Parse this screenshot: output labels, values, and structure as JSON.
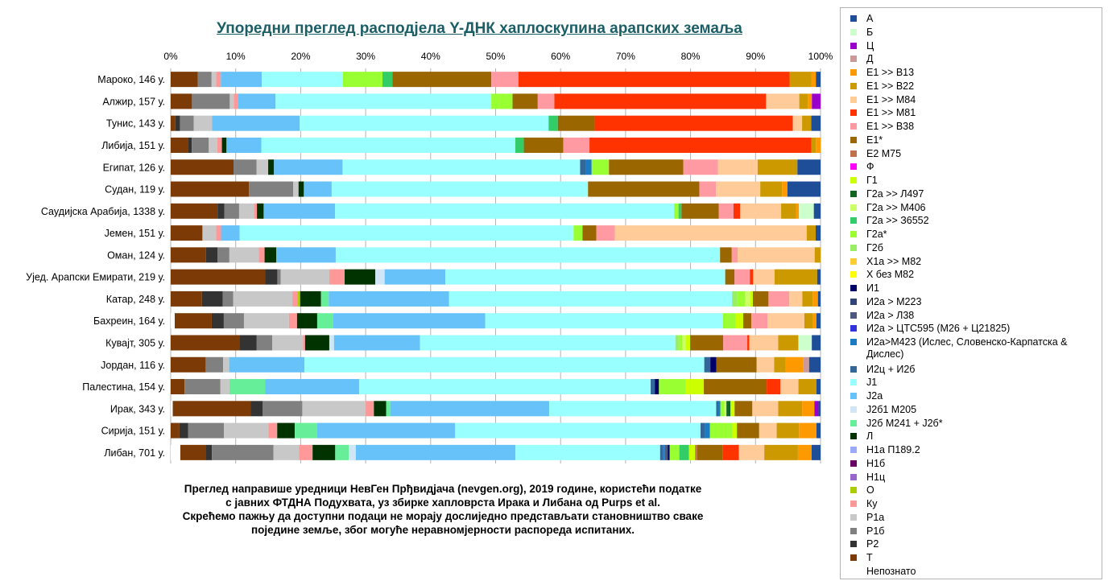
{
  "chart_data": {
    "type": "bar",
    "orientation": "horizontal",
    "stacked": "percent",
    "title": "Упоредни преглед расподјела Y-ДНК хаплоскупина арапских земаља",
    "xlim": [
      0,
      100
    ],
    "x_ticks": [
      "0%",
      "10%",
      "20%",
      "30%",
      "40%",
      "50%",
      "60%",
      "70%",
      "80%",
      "90%",
      "100%"
    ],
    "grid": true,
    "legend_position": "right",
    "categories": [
      "Мароко, 146 у.",
      "Алжир, 157 у.",
      "Тунис, 143 у.",
      "Либија, 151 у.",
      "Египат, 126 у.",
      "Судан, 119 у.",
      "Саудијска Арабија, 1338 у.",
      "Јемен, 151 у.",
      "Оман, 124 у.",
      "Уједињени Арапски Емирати, 219 у.",
      "Катар, 248 у.",
      "Бахреин, 164 у.",
      "Кувајт, 305 у.",
      "Јордан, 116 у.",
      "Палестина, 154 у.",
      "Ирак, 343 у.",
      "Сирија, 151 у.",
      "Либан, 701 у."
    ],
    "series": [
      {
        "name": "Непознато",
        "color": "#ffffff",
        "values": [
          0,
          0,
          0,
          0,
          0,
          0,
          0,
          0,
          0,
          0,
          0,
          0.6,
          0,
          0,
          0,
          0.3,
          0,
          1.4
        ]
      },
      {
        "name": "Т",
        "color": "#7b3a06",
        "values": [
          4.1,
          3.2,
          0.7,
          2.6,
          8.7,
          11.8,
          6.3,
          4.6,
          4.8,
          14.2,
          4.8,
          5.5,
          10.2,
          5.2,
          2.0,
          11.4,
          1.3,
          3.7
        ]
      },
      {
        "name": "Р2",
        "color": "#333333",
        "values": [
          0,
          0,
          0.7,
          0.6,
          0,
          0,
          0.9,
          0,
          1.6,
          1.8,
          3.2,
          1.8,
          2.6,
          0,
          0,
          1.8,
          1.3,
          0.9
        ]
      },
      {
        "name": "Р1б",
        "color": "#808080",
        "values": [
          2.1,
          5.7,
          2.1,
          2.6,
          3.2,
          6.7,
          2.0,
          0,
          1.6,
          0.5,
          1.6,
          3.0,
          2.3,
          2.6,
          5.2,
          5.8,
          5.3,
          9.0
        ]
      },
      {
        "name": "Р1а",
        "color": "#c8c8c8",
        "values": [
          0.7,
          0.6,
          2.8,
          1.3,
          1.6,
          0.8,
          2.0,
          2.0,
          4.0,
          7.3,
          9.1,
          6.7,
          4.6,
          0.9,
          1.3,
          9.3,
          6.6,
          3.7
        ]
      },
      {
        "name": "Ку",
        "color": "#ff9999",
        "values": [
          0.7,
          0.6,
          0,
          0.7,
          0,
          0,
          0.4,
          0.7,
          0.8,
          2.3,
          0.8,
          1.2,
          0.3,
          0,
          0,
          1.2,
          1.3,
          2.0
        ]
      },
      {
        "name": "О",
        "color": "#aacc00",
        "values": [
          0,
          0,
          0,
          0,
          0,
          0,
          0,
          0,
          0,
          0,
          0.4,
          0,
          0,
          0,
          0,
          0,
          0,
          0
        ]
      },
      {
        "name": "Н1ц",
        "color": "#9966cc",
        "values": [
          0,
          0,
          0,
          0,
          0,
          0,
          0,
          0,
          0,
          0,
          0,
          0,
          0,
          0,
          0,
          0,
          0,
          0
        ]
      },
      {
        "name": "Н1б",
        "color": "#660066",
        "values": [
          0,
          0,
          0,
          0,
          0,
          0,
          0,
          0,
          0,
          0,
          0,
          0,
          0,
          0,
          0,
          0,
          0,
          0
        ]
      },
      {
        "name": "Н1а П189.2",
        "color": "#99aaff",
        "values": [
          0,
          0,
          0,
          0,
          0,
          0,
          0,
          0,
          0,
          0,
          0,
          0,
          0,
          0,
          0,
          0,
          0,
          0
        ]
      },
      {
        "name": "Л",
        "color": "#003300",
        "values": [
          0,
          0,
          0,
          0.7,
          0.8,
          0.8,
          0.9,
          0,
          1.6,
          4.6,
          3.2,
          3.0,
          3.6,
          0,
          0,
          1.8,
          2.6,
          3.3
        ]
      },
      {
        "name": "Ј2б М241 + Ј2б*",
        "color": "#66ee99",
        "values": [
          0,
          0,
          0,
          0,
          0,
          0,
          0,
          0,
          0,
          0,
          1.2,
          2.4,
          0,
          0,
          5.2,
          0.6,
          3.3,
          2.0
        ]
      },
      {
        "name": "Ј2б1 М205",
        "color": "#d0e6f6",
        "values": [
          0,
          0,
          0,
          0,
          0,
          0,
          0,
          0,
          0,
          1.4,
          0,
          0,
          0.7,
          0,
          0,
          0,
          0,
          1.0
        ]
      },
      {
        "name": "Ј2а",
        "color": "#66c2f8",
        "values": [
          6.2,
          5.7,
          13.3,
          5.3,
          9.5,
          4.2,
          9.6,
          2.7,
          8.1,
          9.1,
          18.5,
          22.6,
          12.8,
          11.2,
          13.6,
          23.3,
          20.5,
          23.3
        ]
      },
      {
        "name": "Ј1",
        "color": "#99ffff",
        "values": [
          12.3,
          32.5,
          37.8,
          38.7,
          32.9,
          38.7,
          45.6,
          48.4,
          52.4,
          42.0,
          43.5,
          35.4,
          38.0,
          59.5,
          42.2,
          24.5,
          36.4,
          21.1
        ]
      },
      {
        "name": "И2ц + И2б",
        "color": "#336699",
        "values": [
          0,
          0,
          0,
          0,
          0.8,
          0,
          0,
          0,
          0,
          0,
          0,
          0,
          0,
          0.9,
          0.6,
          0.3,
          0.7,
          0.4
        ]
      },
      {
        "name": "И2а>М423 (Ислес, Словенско-Карпатска & Дислес)",
        "color": "#1a7ac2",
        "values": [
          0,
          0,
          0,
          0,
          0.8,
          0,
          0,
          0,
          0,
          0,
          0,
          0,
          0,
          0,
          0,
          0.3,
          0.7,
          0.3
        ]
      },
      {
        "name": "И2а > ЦТС595 (М26 + Ц21825)",
        "color": "#3333dd",
        "values": [
          0,
          0,
          0,
          0,
          0,
          0,
          0,
          0,
          0,
          0,
          0,
          0,
          0,
          0,
          0,
          0,
          0,
          0
        ]
      },
      {
        "name": "И2а > Л38",
        "color": "#4d5a80",
        "values": [
          0,
          0,
          0,
          0,
          0,
          0,
          0,
          0,
          0,
          0,
          0,
          0,
          0,
          0,
          0,
          0,
          0,
          0.4
        ]
      },
      {
        "name": "И2а > М223",
        "color": "#334477",
        "values": [
          0,
          0,
          0,
          0,
          0,
          0,
          0,
          0,
          0,
          0,
          0,
          0,
          0,
          0,
          0,
          0,
          0,
          0
        ]
      },
      {
        "name": "И1",
        "color": "#000066",
        "values": [
          0,
          0,
          0,
          0,
          0,
          0,
          0,
          0,
          0,
          0,
          0,
          0,
          0,
          0.9,
          0.6,
          0,
          0,
          0.3
        ]
      },
      {
        "name": "Х без М82",
        "color": "#ffff00",
        "values": [
          0,
          0,
          0,
          0,
          0,
          0,
          0,
          0,
          0,
          0,
          0,
          0,
          0,
          0,
          0,
          0,
          0,
          0
        ]
      },
      {
        "name": "Х1а >> М82",
        "color": "#ffcc33",
        "values": [
          0,
          0,
          0,
          0,
          0,
          0,
          0,
          0,
          0,
          0,
          0,
          0,
          0,
          0,
          0,
          0,
          0,
          0
        ]
      },
      {
        "name": "Г2б",
        "color": "#99ee66",
        "values": [
          0,
          0,
          0,
          0,
          0,
          0,
          0,
          0,
          0,
          0,
          0.8,
          0,
          0.5,
          0,
          0,
          0,
          0,
          0
        ]
      },
      {
        "name": "Г2а*",
        "color": "#99ff33",
        "values": [
          6.0,
          3.2,
          0,
          0,
          2.4,
          0,
          0.6,
          1.3,
          0,
          0,
          1.2,
          1.8,
          0.5,
          0,
          3.9,
          0.6,
          3.3,
          1.4
        ]
      },
      {
        "name": "Г2а >> З6552",
        "color": "#33cc66",
        "values": [
          1.5,
          0,
          1.4,
          1.3,
          0,
          0,
          0.4,
          0,
          0,
          0,
          0,
          0,
          0,
          0,
          0,
          0,
          0,
          1.4
        ]
      },
      {
        "name": "Г2а >> М406",
        "color": "#ccff66",
        "values": [
          0,
          0,
          0,
          0,
          0,
          0,
          0,
          0,
          0,
          0,
          0.8,
          0,
          0.5,
          0,
          0,
          0.3,
          0,
          0
        ]
      },
      {
        "name": "Г2а >> Л497",
        "color": "#116622",
        "values": [
          0,
          0,
          0,
          0,
          0,
          0,
          0,
          0,
          0,
          0,
          0,
          0,
          0,
          0,
          0,
          0.6,
          0,
          0
        ]
      },
      {
        "name": "Г1",
        "color": "#ccff00",
        "values": [
          0,
          0,
          0,
          0,
          0,
          0,
          0,
          0,
          0,
          0,
          0.4,
          1.2,
          0.7,
          0,
          2.6,
          0.6,
          0.7,
          0.9
        ]
      },
      {
        "name": "Ф",
        "color": "#ff00ff",
        "values": [
          0,
          0,
          0,
          0,
          0,
          0,
          0,
          0,
          0,
          0,
          0,
          0,
          0,
          0,
          0,
          0,
          0,
          0
        ]
      },
      {
        "name": "Е2 М75",
        "color": "#c0704a",
        "values": [
          0,
          0,
          0,
          0,
          0,
          0,
          0,
          0,
          0,
          0,
          0,
          0,
          0,
          0,
          0,
          0,
          0,
          0.3
        ]
      },
      {
        "name": "Е1*",
        "color": "#996600",
        "values": [
          15.0,
          3.8,
          5.6,
          6.0,
          10.3,
          16.8,
          5.0,
          2.0,
          1.6,
          1.4,
          2.4,
          1.2,
          4.9,
          6.0,
          9.1,
          2.6,
          3.3,
          3.7
        ]
      },
      {
        "name": "Е1 >> В38",
        "color": "#ff9aa2",
        "values": [
          4.1,
          2.5,
          0,
          4.0,
          4.8,
          2.5,
          2.0,
          2.7,
          0.8,
          2.3,
          3.2,
          2.4,
          3.6,
          0,
          0,
          0,
          0,
          0
        ]
      },
      {
        "name": "Е1 >> М81",
        "color": "#ff3300",
        "values": [
          41.1,
          31.9,
          30.1,
          33.8,
          0,
          0,
          0.9,
          0,
          0,
          0.5,
          0,
          0,
          0.3,
          0,
          2.0,
          0,
          0,
          2.4
        ]
      },
      {
        "name": "Е1 >> М84",
        "color": "#ffcc99",
        "values": [
          0,
          5.0,
          1.4,
          0,
          5.5,
          6.7,
          5.5,
          27.8,
          10.5,
          3.2,
          2.0,
          5.5,
          4.3,
          2.6,
          2.6,
          3.8,
          2.6,
          3.7
        ]
      },
      {
        "name": "Е1 >> В22",
        "color": "#cc9900",
        "values": [
          3.3,
          1.3,
          1.4,
          0.7,
          5.5,
          3.3,
          2.0,
          1.3,
          0.8,
          6.4,
          1.6,
          1.2,
          3.0,
          1.7,
          2.6,
          3.5,
          3.3,
          4.9
        ]
      },
      {
        "name": "Е1 >> В13",
        "color": "#ff9900",
        "values": [
          0.7,
          0.6,
          0,
          0.7,
          0,
          0.8,
          0.4,
          0,
          0,
          0,
          0.8,
          0.6,
          0,
          2.6,
          0,
          1.8,
          2.6,
          2.0
        ]
      },
      {
        "name": "Д",
        "color": "#cc9999",
        "values": [
          0,
          0,
          0,
          0,
          0,
          0,
          0,
          0,
          0,
          0,
          0,
          0,
          0,
          0.9,
          0,
          0,
          0,
          0
        ]
      },
      {
        "name": "Ц",
        "color": "#9900cc",
        "values": [
          0,
          1.3,
          0,
          0,
          0,
          0,
          0,
          0,
          0,
          0,
          0,
          0,
          0,
          0,
          0,
          0.6,
          0,
          0
        ]
      },
      {
        "name": "Б",
        "color": "#ccffcc",
        "values": [
          0,
          0,
          0,
          0,
          0,
          0,
          2.0,
          0,
          0,
          0,
          0,
          0,
          2.0,
          0,
          0,
          0,
          0,
          0
        ]
      },
      {
        "name": "А",
        "color": "#1f4e99",
        "values": [
          0.7,
          0,
          1.4,
          0,
          3.2,
          5.0,
          0.9,
          0.7,
          0,
          0.5,
          0.4,
          0.6,
          1.3,
          1.7,
          0.6,
          0.3,
          0.6,
          1.3
        ]
      }
    ]
  },
  "legend_items": [
    "А",
    "Б",
    "Ц",
    "Д",
    "Е1 >> В13",
    "Е1 >> В22",
    "Е1 >> М84",
    "Е1 >> М81",
    "Е1 >> В38",
    "Е1*",
    "Е2 М75",
    "Ф",
    "Г1",
    "Г2а >> Л497",
    "Г2а >> М406",
    "Г2а >> З6552",
    "Г2а*",
    "Г2б",
    "Х1а >> М82",
    "Х без М82",
    "И1",
    "И2а > М223",
    "И2а > Л38",
    "И2а > ЦТС595 (М26 + Ц21825)",
    "И2а>М423 (Ислес, Словенско-Карпатска & Дислес)",
    "И2ц + И2б",
    "Ј1",
    "Ј2а",
    "Ј2б1 М205",
    "Ј2б М241 + Ј2б*",
    "Л",
    "Н1а П189.2",
    "Н1б",
    "Н1ц",
    "О",
    "Ку",
    "Р1а",
    "Р1б",
    "Р2",
    "Т",
    "Непознато"
  ],
  "legend_colors": [
    "#1f4e99",
    "#ccffcc",
    "#9900cc",
    "#cc9999",
    "#ff9900",
    "#cc9900",
    "#ffcc99",
    "#ff3300",
    "#ff9aa2",
    "#996600",
    "#c0704a",
    "#ff00ff",
    "#ccff00",
    "#116622",
    "#ccff66",
    "#33cc66",
    "#99ff33",
    "#99ee66",
    "#ffcc33",
    "#ffff00",
    "#000066",
    "#334477",
    "#4d5a80",
    "#3333dd",
    "#1a7ac2",
    "#336699",
    "#99ffff",
    "#66c2f8",
    "#d0e6f6",
    "#66ee99",
    "#003300",
    "#99aaff",
    "#660066",
    "#9966cc",
    "#aacc00",
    "#ff9999",
    "#c8c8c8",
    "#808080",
    "#333333",
    "#7b3a06",
    "#ffffff"
  ],
  "category_labels": [
    "Мароко, 146 у.",
    "Алжир, 157 у.",
    "Тунис, 143 у.",
    "Либија, 151 у.",
    "Египат, 126 у.",
    "Судан, 119 у.",
    "Саудијска Арабија, 1338 у.",
    "Јемен, 151 у.",
    "Оман, 124 у.",
    "Ујед. Арапски Емирати, 219 у.",
    "Катар, 248 у.",
    "Бахреин, 164 у.",
    "Кувајт, 305 у.",
    "Јордан, 116 у.",
    "Палестина, 154 у.",
    "Ирак, 343 у.",
    "Сирија, 151 у.",
    "Либан, 701 у."
  ],
  "footnote": {
    "line1": "Преглед направише уредници НевГен Прђвидјача (nevgen.org), 2019 године, користећи податке",
    "line2": "с јавних ФТДНА Подухвата, уз збирке хапловрста Ирака и Либана од Purps et al.",
    "line3": "Скрећемо пажњу да  доступни подаци не морају дослиједно представљати становништво сваке",
    "line4": "поједине земље, због могуће неравномјерности распореда испитаних."
  }
}
